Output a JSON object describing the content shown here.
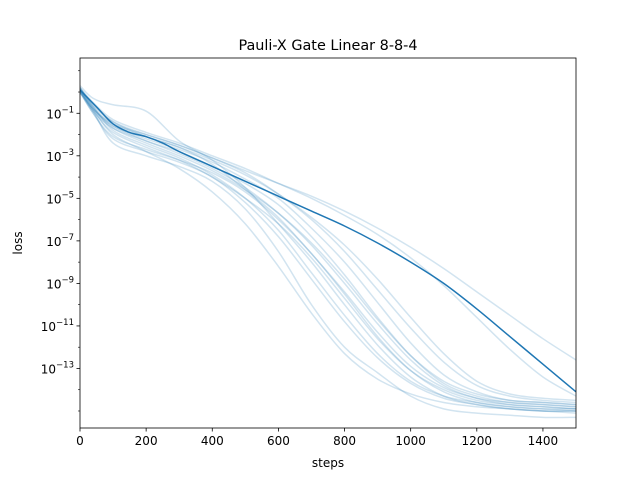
{
  "chart_data": {
    "type": "line",
    "title": "Pauli-X Gate Linear 8-8-4",
    "xlabel": "steps",
    "ylabel": "loss",
    "xlim": [
      0,
      1500
    ],
    "ylim_log10": [
      -15.8,
      1.6
    ],
    "yscale": "log",
    "grid": false,
    "legend": "none",
    "x_ticks": [
      0,
      200,
      400,
      600,
      800,
      1000,
      1200,
      1400
    ],
    "y_ticks": [
      {
        "exp": -1,
        "base": "10",
        "power": "−1"
      },
      {
        "exp": -3,
        "base": "10",
        "power": "−3"
      },
      {
        "exp": -5,
        "base": "10",
        "power": "−5"
      },
      {
        "exp": -7,
        "base": "10",
        "power": "−7"
      },
      {
        "exp": -9,
        "base": "10",
        "power": "−9"
      },
      {
        "exp": -11,
        "base": "10",
        "power": "−11"
      },
      {
        "exp": -13,
        "base": "10",
        "power": "−13"
      }
    ],
    "colors": {
      "mean": "#1f77b4",
      "runs": "#1f77b4",
      "runs_alpha": 0.2
    },
    "mean": {
      "x": [
        0,
        50,
        100,
        150,
        200,
        250,
        300,
        400,
        500,
        600,
        700,
        800,
        900,
        1000,
        1100,
        1200,
        1300,
        1400,
        1500
      ],
      "log10_y": [
        0.1,
        -0.7,
        -1.5,
        -1.9,
        -2.1,
        -2.4,
        -2.8,
        -3.5,
        -4.2,
        -4.9,
        -5.6,
        -6.3,
        -7.1,
        -8.0,
        -9.0,
        -10.2,
        -11.5,
        -12.8,
        -14.1
      ]
    },
    "runs": [
      {
        "x": [
          0,
          40,
          100,
          200,
          300,
          400,
          500,
          600,
          700,
          800,
          900,
          1000,
          1100,
          1200,
          1300,
          1400,
          1500
        ],
        "log10_y": [
          0.0,
          -0.9,
          -2.4,
          -3.0,
          -3.5,
          -4.2,
          -5.5,
          -7.5,
          -10.0,
          -12.0,
          -13.2,
          -14.3,
          -14.9,
          -15.1,
          -15.2,
          -15.3,
          -15.3
        ]
      },
      {
        "x": [
          0,
          40,
          100,
          200,
          300,
          400,
          500,
          600,
          700,
          800,
          900,
          1000,
          1100,
          1200,
          1300,
          1400,
          1500
        ],
        "log10_y": [
          0.1,
          -0.8,
          -2.0,
          -2.8,
          -3.6,
          -4.7,
          -6.2,
          -8.2,
          -10.4,
          -12.3,
          -13.5,
          -14.2,
          -14.6,
          -14.8,
          -14.9,
          -15.0,
          -15.0
        ]
      },
      {
        "x": [
          0,
          40,
          100,
          200,
          300,
          400,
          500,
          600,
          700,
          800,
          900,
          1000,
          1100,
          1200,
          1300,
          1400,
          1500
        ],
        "log10_y": [
          0.2,
          -0.6,
          -1.4,
          -2.1,
          -2.6,
          -3.4,
          -4.6,
          -5.9,
          -7.6,
          -9.4,
          -11.3,
          -12.9,
          -13.9,
          -14.4,
          -14.6,
          -14.7,
          -14.8
        ]
      },
      {
        "x": [
          0,
          40,
          100,
          200,
          300,
          400,
          500,
          600,
          700,
          800,
          900,
          1000,
          1100,
          1200,
          1300,
          1400,
          1500
        ],
        "log10_y": [
          0.3,
          -0.3,
          -0.6,
          -0.9,
          -2.3,
          -3.2,
          -4.5,
          -6.2,
          -8.0,
          -10.0,
          -11.9,
          -13.4,
          -14.3,
          -14.7,
          -14.9,
          -15.0,
          -15.0
        ]
      },
      {
        "x": [
          0,
          40,
          100,
          200,
          300,
          400,
          500,
          600,
          700,
          800,
          900,
          1000,
          1100,
          1200,
          1300,
          1400,
          1500
        ],
        "log10_y": [
          0.1,
          -0.9,
          -1.7,
          -2.3,
          -2.9,
          -3.6,
          -4.5,
          -5.7,
          -7.2,
          -9.0,
          -10.9,
          -12.6,
          -13.8,
          -14.4,
          -14.7,
          -14.8,
          -14.9
        ]
      },
      {
        "x": [
          0,
          40,
          100,
          200,
          300,
          400,
          500,
          600,
          700,
          800,
          900,
          1000,
          1100,
          1200,
          1300,
          1400,
          1500
        ],
        "log10_y": [
          0.0,
          -0.8,
          -1.6,
          -2.2,
          -2.7,
          -3.3,
          -4.1,
          -5.0,
          -6.4,
          -8.0,
          -9.9,
          -11.8,
          -13.3,
          -14.1,
          -14.5,
          -14.6,
          -14.7
        ]
      },
      {
        "x": [
          0,
          40,
          100,
          200,
          300,
          400,
          500,
          600,
          700,
          800,
          900,
          1000,
          1100,
          1200,
          1300,
          1400,
          1500
        ],
        "log10_y": [
          0.2,
          -0.7,
          -1.8,
          -2.5,
          -3.1,
          -3.9,
          -5.0,
          -6.5,
          -8.5,
          -10.5,
          -12.3,
          -13.6,
          -14.3,
          -14.6,
          -14.8,
          -14.9,
          -14.9
        ]
      },
      {
        "x": [
          0,
          40,
          100,
          200,
          300,
          400,
          500,
          600,
          700,
          800,
          900,
          1000,
          1100,
          1200,
          1300,
          1400,
          1500
        ],
        "log10_y": [
          0.1,
          -0.8,
          -1.5,
          -2.0,
          -2.5,
          -3.1,
          -3.8,
          -4.8,
          -6.0,
          -7.5,
          -9.3,
          -11.1,
          -12.7,
          -13.8,
          -14.3,
          -14.5,
          -14.6
        ]
      },
      {
        "x": [
          0,
          40,
          100,
          200,
          300,
          400,
          500,
          600,
          700,
          800,
          900,
          1000,
          1100,
          1200,
          1300,
          1400,
          1500
        ],
        "log10_y": [
          0.0,
          -1.0,
          -2.2,
          -2.8,
          -3.3,
          -4.0,
          -5.2,
          -6.8,
          -8.8,
          -10.8,
          -12.5,
          -13.7,
          -14.4,
          -14.7,
          -14.9,
          -15.0,
          -15.1
        ]
      },
      {
        "x": [
          0,
          40,
          100,
          200,
          300,
          400,
          500,
          600,
          700,
          800,
          900,
          1000,
          1100,
          1200,
          1300,
          1400,
          1500
        ],
        "log10_y": [
          0.2,
          -0.5,
          -1.3,
          -1.9,
          -2.4,
          -3.0,
          -3.6,
          -4.3,
          -5.0,
          -5.8,
          -6.7,
          -7.8,
          -9.1,
          -10.6,
          -12.1,
          -13.4,
          -14.3
        ]
      },
      {
        "x": [
          0,
          40,
          100,
          200,
          300,
          400,
          500,
          600,
          700,
          800,
          900,
          1000,
          1100,
          1200,
          1300,
          1400,
          1500
        ],
        "log10_y": [
          0.1,
          -0.6,
          -1.4,
          -2.0,
          -2.5,
          -3.1,
          -3.7,
          -4.3,
          -4.9,
          -5.6,
          -6.4,
          -7.3,
          -8.3,
          -9.4,
          -10.5,
          -11.6,
          -12.6
        ]
      },
      {
        "x": [
          0,
          40,
          100,
          200,
          300,
          400,
          500,
          600,
          700,
          800,
          900,
          1000,
          1100,
          1200,
          1300,
          1400,
          1500
        ],
        "log10_y": [
          0.1,
          -0.8,
          -1.6,
          -2.3,
          -2.8,
          -3.5,
          -4.3,
          -5.3,
          -6.8,
          -8.6,
          -10.6,
          -12.4,
          -13.7,
          -14.3,
          -14.6,
          -14.7,
          -14.8
        ]
      },
      {
        "x": [
          0,
          40,
          100,
          200,
          300,
          400,
          500,
          600,
          700,
          800,
          900,
          1000,
          1100,
          1200,
          1300,
          1400,
          1500
        ],
        "log10_y": [
          0.0,
          -0.9,
          -1.9,
          -2.6,
          -3.2,
          -4.0,
          -5.0,
          -6.2,
          -7.8,
          -9.7,
          -11.6,
          -13.1,
          -14.0,
          -14.5,
          -14.7,
          -14.8,
          -14.9
        ]
      },
      {
        "x": [
          0,
          40,
          100,
          200,
          300,
          400,
          500,
          600,
          700,
          800,
          900,
          1000,
          1100,
          1200,
          1300,
          1400,
          1500
        ],
        "log10_y": [
          0.2,
          -0.7,
          -1.5,
          -2.1,
          -2.6,
          -3.2,
          -3.9,
          -4.8,
          -5.9,
          -7.2,
          -8.8,
          -10.6,
          -12.3,
          -13.6,
          -14.2,
          -14.4,
          -14.5
        ]
      },
      {
        "x": [
          0,
          40,
          100,
          200,
          300,
          400,
          500,
          600,
          700,
          800,
          900,
          1000,
          1100,
          1200,
          1300,
          1400,
          1500
        ],
        "log10_y": [
          0.1,
          -0.7,
          -1.7,
          -2.4,
          -3.0,
          -3.7,
          -4.6,
          -5.7,
          -7.1,
          -8.8,
          -10.7,
          -12.4,
          -13.6,
          -14.2,
          -14.5,
          -14.6,
          -14.7
        ]
      },
      {
        "x": [
          0,
          40,
          100,
          200,
          300,
          400,
          500,
          600,
          700,
          800,
          900,
          1000,
          1100,
          1200,
          1300,
          1400,
          1500
        ],
        "log10_y": [
          0.0,
          -1.0,
          -2.1,
          -2.7,
          -3.2,
          -3.8,
          -4.7,
          -6.0,
          -7.6,
          -9.5,
          -11.5,
          -13.1,
          -14.1,
          -14.6,
          -14.8,
          -14.9,
          -15.0
        ]
      }
    ]
  }
}
